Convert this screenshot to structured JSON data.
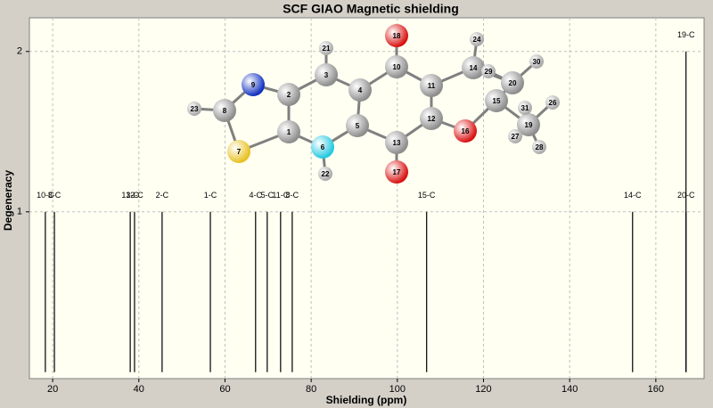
{
  "chart_data": {
    "type": "stick",
    "title": "SCF GIAO Magnetic shielding",
    "x_label": "Shielding (ppm)",
    "y_label": "Degeneracy",
    "labels": [
      "10-C",
      "3-C",
      "13-C",
      "12-C",
      "2-C",
      "1-C",
      "4-C",
      "5-C",
      "11-C",
      "8-C",
      "15-C",
      "14-C",
      "20-C",
      "19-C"
    ],
    "x": [
      18.3,
      20.4,
      38.0,
      39.0,
      45.4,
      56.6,
      67.1,
      69.8,
      72.9,
      75.6,
      106.8,
      154.6,
      167.0,
      167.0
    ],
    "values": [
      1,
      1,
      1,
      1,
      1,
      1,
      1,
      1,
      1,
      1,
      1,
      1,
      1,
      2
    ],
    "color": "#000000",
    "xlim": [
      14.6,
      171.2
    ],
    "ylim": [
      -0.04,
      2.21
    ],
    "xticks": [
      20,
      40,
      60,
      80,
      100,
      120,
      140,
      160
    ],
    "yticks": [
      1,
      2
    ],
    "grid": true,
    "molecule": {
      "atoms": [
        "1",
        "2",
        "3",
        "4",
        "5",
        "6",
        "7",
        "8",
        "9",
        "10",
        "11",
        "12",
        "13",
        "14",
        "15",
        "16",
        "17",
        "18",
        "19",
        "20",
        "21",
        "22",
        "23",
        "24",
        "26",
        "27",
        "28",
        "29",
        "30",
        "31"
      ]
    }
  }
}
